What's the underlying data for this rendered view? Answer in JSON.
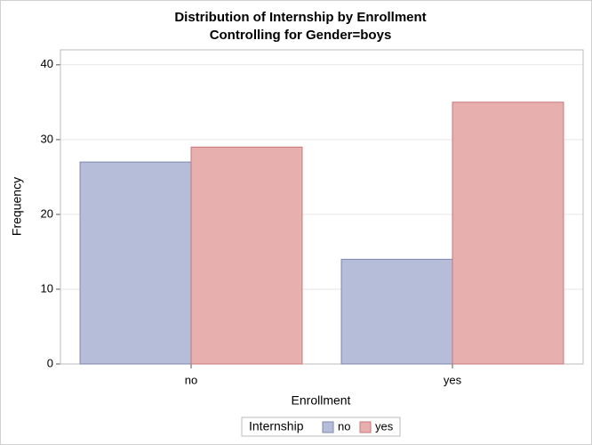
{
  "chart_data": {
    "type": "bar",
    "title": [
      "Distribution of Internship by Enrollment",
      "Controlling for Gender=boys"
    ],
    "x_label": "Enrollment",
    "y_label": "Frequency",
    "categories": [
      "no",
      "yes"
    ],
    "series": [
      {
        "name": "no",
        "color": "#b5bdd9",
        "values": [
          27,
          14
        ]
      },
      {
        "name": "yes",
        "color": "#e8afaf",
        "values": [
          29,
          35
        ]
      }
    ],
    "legend_title": "Internship",
    "ylim": [
      0,
      42
    ],
    "yticks": [
      0,
      10,
      20,
      30,
      40
    ],
    "grid": true
  }
}
